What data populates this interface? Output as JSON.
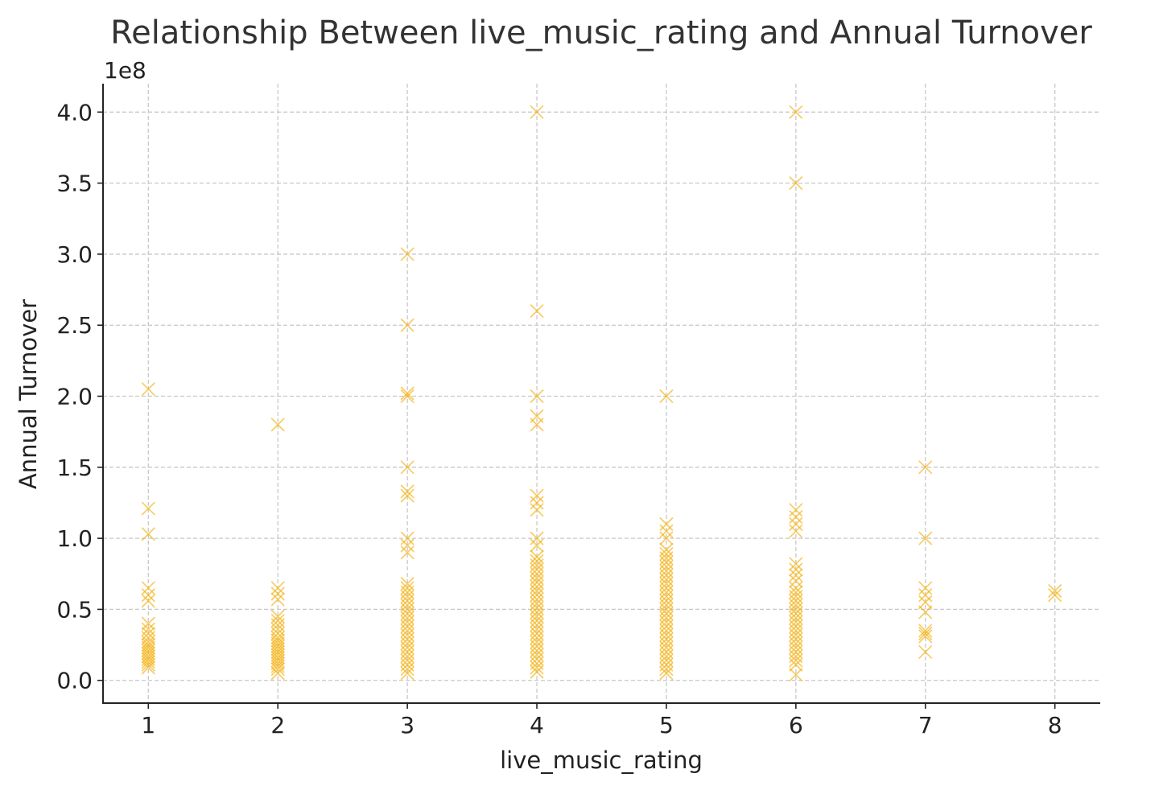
{
  "chart_data": {
    "type": "scatter",
    "title": "Relationship Between live_music_rating and Annual Turnover",
    "xlabel": "live_music_rating",
    "ylabel": "Annual Turnover",
    "y_offset_label": "1e8",
    "xlim": [
      0.65,
      8.35
    ],
    "ylim": [
      -0.16,
      4.2
    ],
    "y_scale_factor": 100000000,
    "x_ticks": [
      1,
      2,
      3,
      4,
      5,
      6,
      7,
      8
    ],
    "x_tick_labels": [
      "1",
      "2",
      "3",
      "4",
      "5",
      "6",
      "7",
      "8"
    ],
    "y_ticks": [
      0.0,
      0.5,
      1.0,
      1.5,
      2.0,
      2.5,
      3.0,
      3.5,
      4.0
    ],
    "y_tick_labels": [
      "0.0",
      "0.5",
      "1.0",
      "1.5",
      "2.0",
      "2.5",
      "3.0",
      "3.5",
      "4.0"
    ],
    "grid": true,
    "marker": "x",
    "color": "#f5b10d",
    "series": [
      {
        "points": [
          [
            1,
            2.05
          ],
          [
            1,
            1.21
          ],
          [
            1,
            1.03
          ],
          [
            1,
            0.65
          ],
          [
            1,
            0.6
          ],
          [
            1,
            0.56
          ],
          [
            1,
            0.4
          ],
          [
            1,
            0.36
          ],
          [
            1,
            0.33
          ],
          [
            1,
            0.3
          ],
          [
            1,
            0.27
          ],
          [
            1,
            0.25
          ],
          [
            1,
            0.23
          ],
          [
            1,
            0.21
          ],
          [
            1,
            0.19
          ],
          [
            1,
            0.17
          ],
          [
            1,
            0.15
          ],
          [
            1,
            0.13
          ],
          [
            1,
            0.11
          ],
          [
            1,
            0.09
          ],
          [
            2,
            1.8
          ],
          [
            2,
            0.65
          ],
          [
            2,
            0.61
          ],
          [
            2,
            0.57
          ],
          [
            2,
            0.45
          ],
          [
            2,
            0.42
          ],
          [
            2,
            0.39
          ],
          [
            2,
            0.36
          ],
          [
            2,
            0.33
          ],
          [
            2,
            0.3
          ],
          [
            2,
            0.28
          ],
          [
            2,
            0.26
          ],
          [
            2,
            0.24
          ],
          [
            2,
            0.22
          ],
          [
            2,
            0.2
          ],
          [
            2,
            0.18
          ],
          [
            2,
            0.16
          ],
          [
            2,
            0.14
          ],
          [
            2,
            0.12
          ],
          [
            2,
            0.1
          ],
          [
            2,
            0.08
          ],
          [
            2,
            0.05
          ],
          [
            3,
            3.0
          ],
          [
            3,
            2.5
          ],
          [
            3,
            2.02
          ],
          [
            3,
            2.0
          ],
          [
            3,
            1.5
          ],
          [
            3,
            1.33
          ],
          [
            3,
            1.3
          ],
          [
            3,
            1.0
          ],
          [
            3,
            0.95
          ],
          [
            3,
            0.9
          ],
          [
            3,
            0.68
          ],
          [
            3,
            0.65
          ],
          [
            3,
            0.62
          ],
          [
            3,
            0.59
          ],
          [
            3,
            0.56
          ],
          [
            3,
            0.53
          ],
          [
            3,
            0.5
          ],
          [
            3,
            0.47
          ],
          [
            3,
            0.44
          ],
          [
            3,
            0.41
          ],
          [
            3,
            0.38
          ],
          [
            3,
            0.35
          ],
          [
            3,
            0.32
          ],
          [
            3,
            0.29
          ],
          [
            3,
            0.26
          ],
          [
            3,
            0.23
          ],
          [
            3,
            0.2
          ],
          [
            3,
            0.17
          ],
          [
            3,
            0.14
          ],
          [
            3,
            0.11
          ],
          [
            3,
            0.08
          ],
          [
            3,
            0.05
          ],
          [
            4,
            4.0
          ],
          [
            4,
            2.6
          ],
          [
            4,
            2.0
          ],
          [
            4,
            1.86
          ],
          [
            4,
            1.8
          ],
          [
            4,
            1.3
          ],
          [
            4,
            1.25
          ],
          [
            4,
            1.2
          ],
          [
            4,
            1.0
          ],
          [
            4,
            0.95
          ],
          [
            4,
            0.87
          ],
          [
            4,
            0.84
          ],
          [
            4,
            0.81
          ],
          [
            4,
            0.78
          ],
          [
            4,
            0.75
          ],
          [
            4,
            0.72
          ],
          [
            4,
            0.69
          ],
          [
            4,
            0.66
          ],
          [
            4,
            0.63
          ],
          [
            4,
            0.6
          ],
          [
            4,
            0.57
          ],
          [
            4,
            0.54
          ],
          [
            4,
            0.51
          ],
          [
            4,
            0.48
          ],
          [
            4,
            0.45
          ],
          [
            4,
            0.42
          ],
          [
            4,
            0.39
          ],
          [
            4,
            0.36
          ],
          [
            4,
            0.33
          ],
          [
            4,
            0.3
          ],
          [
            4,
            0.27
          ],
          [
            4,
            0.24
          ],
          [
            4,
            0.21
          ],
          [
            4,
            0.18
          ],
          [
            4,
            0.15
          ],
          [
            4,
            0.12
          ],
          [
            4,
            0.09
          ],
          [
            4,
            0.06
          ],
          [
            5,
            2.0
          ],
          [
            5,
            1.1
          ],
          [
            5,
            1.05
          ],
          [
            5,
            1.0
          ],
          [
            5,
            0.92
          ],
          [
            5,
            0.89
          ],
          [
            5,
            0.86
          ],
          [
            5,
            0.83
          ],
          [
            5,
            0.8
          ],
          [
            5,
            0.77
          ],
          [
            5,
            0.74
          ],
          [
            5,
            0.71
          ],
          [
            5,
            0.68
          ],
          [
            5,
            0.65
          ],
          [
            5,
            0.62
          ],
          [
            5,
            0.59
          ],
          [
            5,
            0.56
          ],
          [
            5,
            0.53
          ],
          [
            5,
            0.5
          ],
          [
            5,
            0.47
          ],
          [
            5,
            0.44
          ],
          [
            5,
            0.41
          ],
          [
            5,
            0.38
          ],
          [
            5,
            0.35
          ],
          [
            5,
            0.32
          ],
          [
            5,
            0.29
          ],
          [
            5,
            0.26
          ],
          [
            5,
            0.23
          ],
          [
            5,
            0.2
          ],
          [
            5,
            0.17
          ],
          [
            5,
            0.14
          ],
          [
            5,
            0.11
          ],
          [
            5,
            0.08
          ],
          [
            5,
            0.05
          ],
          [
            6,
            4.0
          ],
          [
            6,
            3.5
          ],
          [
            6,
            1.2
          ],
          [
            6,
            1.15
          ],
          [
            6,
            1.1
          ],
          [
            6,
            1.05
          ],
          [
            6,
            0.82
          ],
          [
            6,
            0.78
          ],
          [
            6,
            0.74
          ],
          [
            6,
            0.7
          ],
          [
            6,
            0.65
          ],
          [
            6,
            0.62
          ],
          [
            6,
            0.59
          ],
          [
            6,
            0.56
          ],
          [
            6,
            0.53
          ],
          [
            6,
            0.5
          ],
          [
            6,
            0.47
          ],
          [
            6,
            0.44
          ],
          [
            6,
            0.41
          ],
          [
            6,
            0.38
          ],
          [
            6,
            0.35
          ],
          [
            6,
            0.32
          ],
          [
            6,
            0.29
          ],
          [
            6,
            0.26
          ],
          [
            6,
            0.23
          ],
          [
            6,
            0.2
          ],
          [
            6,
            0.17
          ],
          [
            6,
            0.14
          ],
          [
            6,
            0.11
          ],
          [
            6,
            0.04
          ],
          [
            7,
            1.5
          ],
          [
            7,
            1.0
          ],
          [
            7,
            0.65
          ],
          [
            7,
            0.6
          ],
          [
            7,
            0.55
          ],
          [
            7,
            0.48
          ],
          [
            7,
            0.35
          ],
          [
            7,
            0.33
          ],
          [
            7,
            0.31
          ],
          [
            7,
            0.2
          ],
          [
            8,
            0.63
          ],
          [
            8,
            0.6
          ]
        ]
      }
    ]
  }
}
